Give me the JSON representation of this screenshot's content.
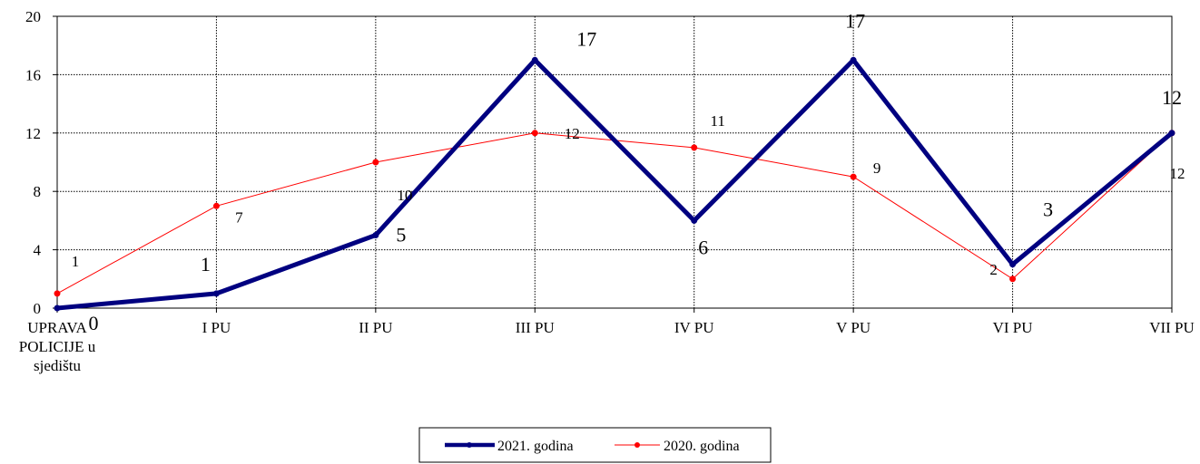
{
  "chart_data": {
    "type": "line",
    "categories": [
      "UPRAVA POLICIJE u sjedištu",
      "I PU",
      "II PU",
      "III PU",
      "IV PU",
      "V PU",
      "VI PU",
      "VII PU"
    ],
    "category_lines": [
      [
        "UPRAVA",
        "POLICIJE u",
        "sjedištu"
      ],
      [
        "I PU"
      ],
      [
        "II PU"
      ],
      [
        "III PU"
      ],
      [
        "IV PU"
      ],
      [
        "V PU"
      ],
      [
        "VI PU"
      ],
      [
        "VII PU"
      ]
    ],
    "series": [
      {
        "name": "2021. godina",
        "values": [
          0,
          1,
          5,
          17,
          6,
          17,
          3,
          12
        ],
        "color": "#000080"
      },
      {
        "name": "2020. godina",
        "values": [
          1,
          7,
          10,
          12,
          11,
          9,
          2,
          12
        ],
        "color": "#ff0000"
      }
    ],
    "ylim": [
      0,
      20
    ],
    "yticks": [
      "0",
      "4",
      "8",
      "12",
      "16",
      "20"
    ],
    "grid": true,
    "legend": "bottom-center",
    "xlabel": "",
    "ylabel": "",
    "title": ""
  }
}
